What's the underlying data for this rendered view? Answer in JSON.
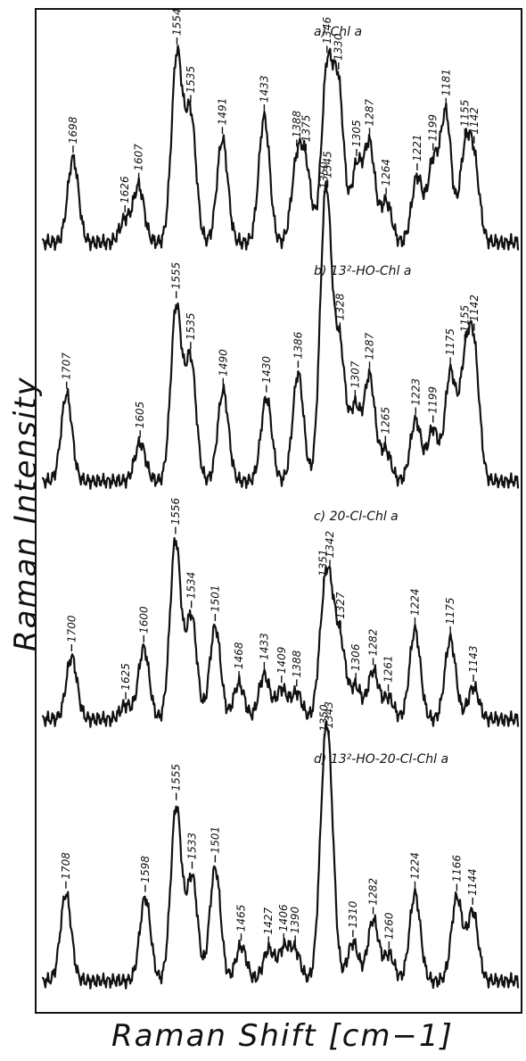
{
  "chart_data": {
    "type": "line",
    "title": "",
    "xlabel": "Raman Shift [cm−1]",
    "ylabel": "Raman Intensity",
    "x_unit": "cm-1",
    "xlim": [
      1740,
      1080
    ],
    "x_reversed": true,
    "grid": false,
    "legend": "none",
    "series": [
      {
        "name": "a) Chl a",
        "peaks": [
          {
            "x": 1698,
            "label": "1698",
            "h": 0.45
          },
          {
            "x": 1626,
            "label": "1626",
            "h": 0.12
          },
          {
            "x": 1607,
            "label": "1607",
            "h": 0.3
          },
          {
            "x": 1554,
            "label": "1554",
            "h": 1.0
          },
          {
            "x": 1535,
            "label": "1535",
            "h": 0.68
          },
          {
            "x": 1491,
            "label": "1491",
            "h": 0.55
          },
          {
            "x": 1433,
            "label": "1433",
            "h": 0.67
          },
          {
            "x": 1388,
            "label": "1388",
            "h": 0.4
          },
          {
            "x": 1375,
            "label": "1375",
            "h": 0.37
          },
          {
            "x": 1346,
            "label": "1346",
            "h": 0.9
          },
          {
            "x": 1330,
            "label": "1330",
            "h": 0.8
          },
          {
            "x": 1305,
            "label": "1305",
            "h": 0.4
          },
          {
            "x": 1287,
            "label": "1287",
            "h": 0.52
          },
          {
            "x": 1264,
            "label": "1264",
            "h": 0.22
          },
          {
            "x": 1221,
            "label": "1221",
            "h": 0.35
          },
          {
            "x": 1199,
            "label": "1199",
            "h": 0.42
          },
          {
            "x": 1181,
            "label": "1181",
            "h": 0.68
          },
          {
            "x": 1155,
            "label": "1155",
            "h": 0.45
          },
          {
            "x": 1142,
            "label": "1142",
            "h": 0.4
          }
        ]
      },
      {
        "name": "b) 13²-HO-Chl a",
        "peaks": [
          {
            "x": 1707,
            "label": "1707",
            "h": 0.5
          },
          {
            "x": 1605,
            "label": "1605",
            "h": 0.22
          },
          {
            "x": 1555,
            "label": "1555",
            "h": 1.0
          },
          {
            "x": 1535,
            "label": "1535",
            "h": 0.7
          },
          {
            "x": 1490,
            "label": "1490",
            "h": 0.52
          },
          {
            "x": 1430,
            "label": "1430",
            "h": 0.48
          },
          {
            "x": 1386,
            "label": "1386",
            "h": 0.62
          },
          {
            "x": 1350,
            "label": "1350",
            "h": 0.85
          },
          {
            "x": 1345,
            "label": "1345",
            "h": 0.92
          },
          {
            "x": 1328,
            "label": "1328",
            "h": 0.75
          },
          {
            "x": 1307,
            "label": "1307",
            "h": 0.42
          },
          {
            "x": 1287,
            "label": "1287",
            "h": 0.6
          },
          {
            "x": 1265,
            "label": "1265",
            "h": 0.18
          },
          {
            "x": 1223,
            "label": "1223",
            "h": 0.35
          },
          {
            "x": 1199,
            "label": "1199",
            "h": 0.3
          },
          {
            "x": 1175,
            "label": "1175",
            "h": 0.62
          },
          {
            "x": 1155,
            "label": "1155",
            "h": 0.6
          },
          {
            "x": 1142,
            "label": "1142",
            "h": 0.7
          }
        ]
      },
      {
        "name": "c) 20-Cl-Chl a",
        "peaks": [
          {
            "x": 1700,
            "label": "1700",
            "h": 0.35
          },
          {
            "x": 1625,
            "label": "1625",
            "h": 0.08
          },
          {
            "x": 1600,
            "label": "1600",
            "h": 0.4
          },
          {
            "x": 1556,
            "label": "1556",
            "h": 1.0
          },
          {
            "x": 1534,
            "label": "1534",
            "h": 0.58
          },
          {
            "x": 1501,
            "label": "1501",
            "h": 0.52
          },
          {
            "x": 1468,
            "label": "1468",
            "h": 0.2
          },
          {
            "x": 1433,
            "label": "1433",
            "h": 0.25
          },
          {
            "x": 1409,
            "label": "1409",
            "h": 0.17
          },
          {
            "x": 1388,
            "label": "1388",
            "h": 0.15
          },
          {
            "x": 1351,
            "label": "1351",
            "h": 0.45
          },
          {
            "x": 1342,
            "label": "1342",
            "h": 0.55
          },
          {
            "x": 1327,
            "label": "1327",
            "h": 0.4
          },
          {
            "x": 1306,
            "label": "1306",
            "h": 0.18
          },
          {
            "x": 1282,
            "label": "1282",
            "h": 0.27
          },
          {
            "x": 1261,
            "label": "1261",
            "h": 0.12
          },
          {
            "x": 1224,
            "label": "1224",
            "h": 0.5
          },
          {
            "x": 1175,
            "label": "1175",
            "h": 0.45
          },
          {
            "x": 1143,
            "label": "1143",
            "h": 0.18
          }
        ]
      },
      {
        "name": "d) 13²-HO-20-Cl-Chl a",
        "peaks": [
          {
            "x": 1708,
            "label": "1708",
            "h": 0.5
          },
          {
            "x": 1598,
            "label": "1598",
            "h": 0.48
          },
          {
            "x": 1555,
            "label": "1555",
            "h": 1.0
          },
          {
            "x": 1533,
            "label": "1533",
            "h": 0.6
          },
          {
            "x": 1501,
            "label": "1501",
            "h": 0.65
          },
          {
            "x": 1465,
            "label": "1465",
            "h": 0.2
          },
          {
            "x": 1427,
            "label": "1427",
            "h": 0.18
          },
          {
            "x": 1406,
            "label": "1406",
            "h": 0.18
          },
          {
            "x": 1390,
            "label": "1390",
            "h": 0.17
          },
          {
            "x": 1350,
            "label": "1350",
            "h": 0.8
          },
          {
            "x": 1343,
            "label": "1343",
            "h": 0.85
          },
          {
            "x": 1310,
            "label": "1310",
            "h": 0.22
          },
          {
            "x": 1282,
            "label": "1282",
            "h": 0.35
          },
          {
            "x": 1260,
            "label": "1260",
            "h": 0.15
          },
          {
            "x": 1224,
            "label": "1224",
            "h": 0.5
          },
          {
            "x": 1166,
            "label": "1166",
            "h": 0.48
          },
          {
            "x": 1144,
            "label": "1144",
            "h": 0.4
          }
        ]
      }
    ]
  }
}
